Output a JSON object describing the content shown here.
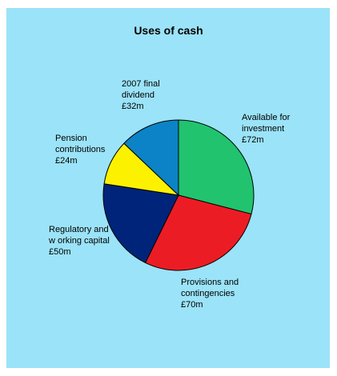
{
  "chart_data": {
    "type": "pie",
    "title": "Uses of cash",
    "unit_prefix": "£",
    "unit_suffix": "m",
    "slices": [
      {
        "label_lines": [
          "Available for",
          "investment",
          "£72m"
        ],
        "value": 72,
        "color": "#21c36f"
      },
      {
        "label_lines": [
          "Provisions and",
          "contingencies",
          "£70m"
        ],
        "value": 70,
        "color": "#ec1c24"
      },
      {
        "label_lines": [
          "Regulatory and",
          "w orking capital",
          "£50m"
        ],
        "value": 50,
        "color": "#002479"
      },
      {
        "label_lines": [
          "Pension",
          "contributions",
          "£24m"
        ],
        "value": 24,
        "color": "#fcf200"
      },
      {
        "label_lines": [
          "2007 final",
          "dividend",
          "£32m"
        ],
        "value": 32,
        "color": "#0b83c6"
      }
    ],
    "background": "#9be3f8"
  }
}
